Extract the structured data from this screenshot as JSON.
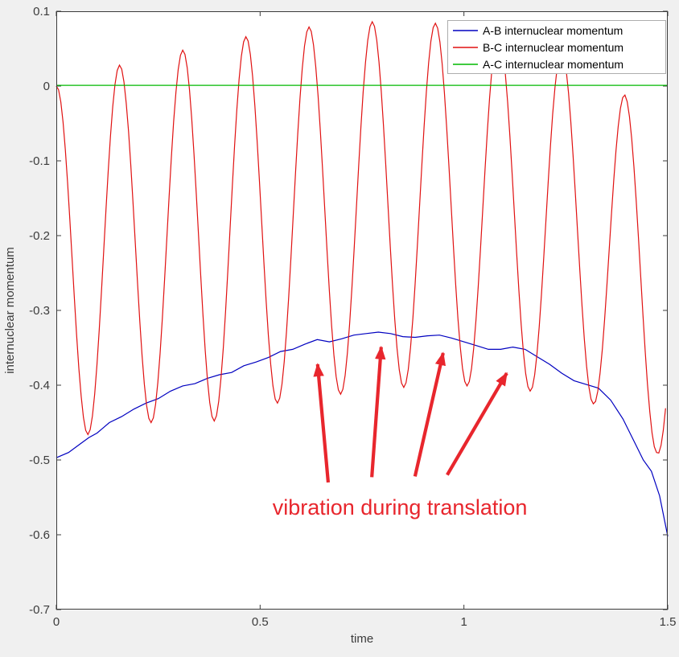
{
  "window": {
    "background": "#f0f0f0"
  },
  "chart_data": {
    "type": "line",
    "title": "",
    "xlabel": "time",
    "ylabel": "internuclear momentum",
    "xlim": [
      0,
      1.5
    ],
    "ylim": [
      -0.7,
      0.1
    ],
    "xticks": [
      0,
      0.5,
      1,
      1.5
    ],
    "xtick_labels": [
      "0",
      "0.5",
      "1",
      "1.5"
    ],
    "yticks": [
      -0.7,
      -0.6,
      -0.5,
      -0.4,
      -0.3,
      -0.2,
      -0.1,
      0,
      0.1
    ],
    "ytick_labels": [
      "-0.7",
      "-0.6",
      "-0.5",
      "-0.4",
      "-0.3",
      "-0.2",
      "-0.1",
      "0",
      "0.1"
    ],
    "grid": false,
    "axes_background": "#ffffff",
    "axis_color": "#3b3b3b",
    "legend": {
      "position": "top-right",
      "border_color": "#adadad",
      "background": "#ffffff",
      "entries": [
        {
          "label": "A-B internuclear momentum",
          "color": "#0000C0"
        },
        {
          "label": "B-C internuclear momentum",
          "color": "#E01111"
        },
        {
          "label": "A-C internuclear momentum",
          "color": "#00B800"
        }
      ]
    },
    "series": [
      {
        "name": "A-B internuclear momentum",
        "color": "#0000C0",
        "kind": "points",
        "points": [
          [
            0.0,
            -0.497
          ],
          [
            0.03,
            -0.49
          ],
          [
            0.06,
            -0.478
          ],
          [
            0.08,
            -0.47
          ],
          [
            0.1,
            -0.464
          ],
          [
            0.13,
            -0.45
          ],
          [
            0.16,
            -0.442
          ],
          [
            0.19,
            -0.432
          ],
          [
            0.22,
            -0.424
          ],
          [
            0.25,
            -0.418
          ],
          [
            0.28,
            -0.408
          ],
          [
            0.31,
            -0.401
          ],
          [
            0.34,
            -0.398
          ],
          [
            0.37,
            -0.391
          ],
          [
            0.4,
            -0.386
          ],
          [
            0.43,
            -0.383
          ],
          [
            0.46,
            -0.374
          ],
          [
            0.49,
            -0.369
          ],
          [
            0.52,
            -0.363
          ],
          [
            0.55,
            -0.355
          ],
          [
            0.58,
            -0.352
          ],
          [
            0.61,
            -0.345
          ],
          [
            0.64,
            -0.339
          ],
          [
            0.67,
            -0.342
          ],
          [
            0.7,
            -0.338
          ],
          [
            0.73,
            -0.333
          ],
          [
            0.76,
            -0.331
          ],
          [
            0.79,
            -0.329
          ],
          [
            0.82,
            -0.331
          ],
          [
            0.85,
            -0.335
          ],
          [
            0.88,
            -0.336
          ],
          [
            0.91,
            -0.334
          ],
          [
            0.94,
            -0.333
          ],
          [
            0.97,
            -0.337
          ],
          [
            1.0,
            -0.342
          ],
          [
            1.03,
            -0.347
          ],
          [
            1.06,
            -0.352
          ],
          [
            1.09,
            -0.352
          ],
          [
            1.12,
            -0.349
          ],
          [
            1.15,
            -0.352
          ],
          [
            1.18,
            -0.362
          ],
          [
            1.21,
            -0.372
          ],
          [
            1.24,
            -0.384
          ],
          [
            1.27,
            -0.394
          ],
          [
            1.3,
            -0.399
          ],
          [
            1.33,
            -0.404
          ],
          [
            1.36,
            -0.42
          ],
          [
            1.39,
            -0.445
          ],
          [
            1.42,
            -0.478
          ],
          [
            1.44,
            -0.5
          ],
          [
            1.46,
            -0.515
          ],
          [
            1.48,
            -0.548
          ],
          [
            1.5,
            -0.602
          ]
        ]
      },
      {
        "name": "B-C internuclear momentum",
        "color": "#E01111",
        "kind": "modulated_cosine",
        "period": 0.155,
        "range": [
          0,
          1.5
        ],
        "envelope_top": [
          [
            0,
            0.0
          ],
          [
            0.155,
            0.028
          ],
          [
            0.31,
            0.048
          ],
          [
            0.465,
            0.066
          ],
          [
            0.62,
            0.079
          ],
          [
            0.775,
            0.086
          ],
          [
            0.93,
            0.084
          ],
          [
            1.085,
            0.071
          ],
          [
            1.24,
            0.047
          ],
          [
            1.395,
            -0.012
          ],
          [
            1.5,
            -0.075
          ]
        ],
        "envelope_bottom": [
          [
            0,
            -0.47
          ],
          [
            0.0775,
            -0.466
          ],
          [
            0.2325,
            -0.45
          ],
          [
            0.3875,
            -0.448
          ],
          [
            0.5425,
            -0.424
          ],
          [
            0.6975,
            -0.412
          ],
          [
            0.8525,
            -0.403
          ],
          [
            1.0075,
            -0.401
          ],
          [
            1.1625,
            -0.408
          ],
          [
            1.3175,
            -0.425
          ],
          [
            1.4725,
            -0.49
          ],
          [
            1.5,
            -0.52
          ]
        ]
      },
      {
        "name": "A-C internuclear momentum",
        "color": "#00B800",
        "kind": "points",
        "points": [
          [
            0,
            0.001
          ],
          [
            1.5,
            0.001
          ]
        ]
      }
    ],
    "annotation": {
      "text": "vibration during translation",
      "color": "#E8262D",
      "font_size": 27,
      "text_anchor_data": [
        0.843,
        -0.573
      ],
      "arrows": [
        {
          "from": [
            0.667,
            -0.53
          ],
          "to": [
            0.641,
            -0.372
          ]
        },
        {
          "from": [
            0.774,
            -0.523
          ],
          "to": [
            0.797,
            -0.349
          ]
        },
        {
          "from": [
            0.88,
            -0.522
          ],
          "to": [
            0.949,
            -0.357
          ]
        },
        {
          "from": [
            0.959,
            -0.52
          ],
          "to": [
            1.105,
            -0.384
          ]
        }
      ]
    }
  }
}
